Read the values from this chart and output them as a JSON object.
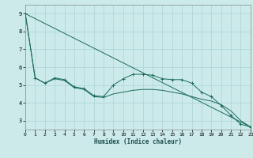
{
  "xlabel": "Humidex (Indice chaleur)",
  "bg_color": "#cceaea",
  "grid_color": "#aad4d4",
  "line_color": "#1a6b5a",
  "x_min": 0,
  "x_max": 23,
  "y_min": 2.5,
  "y_max": 9.5,
  "yticks": [
    3,
    4,
    5,
    6,
    7,
    8,
    9
  ],
  "xticks": [
    0,
    1,
    2,
    3,
    4,
    5,
    6,
    7,
    8,
    9,
    10,
    11,
    12,
    13,
    14,
    15,
    16,
    17,
    18,
    19,
    20,
    21,
    22,
    23
  ],
  "line1_x": [
    0,
    1,
    2,
    3,
    4,
    5,
    6,
    7,
    8,
    9,
    10,
    11,
    12,
    13,
    14,
    15,
    16,
    17,
    18,
    19,
    20,
    21,
    22,
    23
  ],
  "line1_y": [
    9.0,
    5.4,
    5.1,
    5.4,
    5.3,
    4.9,
    4.8,
    4.4,
    4.35,
    5.0,
    5.35,
    5.6,
    5.6,
    5.55,
    5.35,
    5.3,
    5.3,
    5.1,
    4.6,
    4.35,
    3.85,
    3.3,
    2.8,
    2.65
  ],
  "line2_x": [
    0,
    1,
    2,
    3,
    4,
    5,
    6,
    7,
    8,
    9,
    10,
    11,
    12,
    13,
    14,
    15,
    16,
    17,
    18,
    19,
    20,
    21,
    22,
    23
  ],
  "line2_y": [
    9.0,
    5.4,
    5.1,
    5.35,
    5.25,
    4.85,
    4.75,
    4.35,
    4.3,
    4.5,
    4.6,
    4.7,
    4.75,
    4.75,
    4.7,
    4.6,
    4.5,
    4.35,
    4.2,
    4.1,
    3.9,
    3.55,
    3.0,
    2.65
  ],
  "line3_x": [
    0,
    23
  ],
  "line3_y": [
    9.0,
    2.65
  ]
}
